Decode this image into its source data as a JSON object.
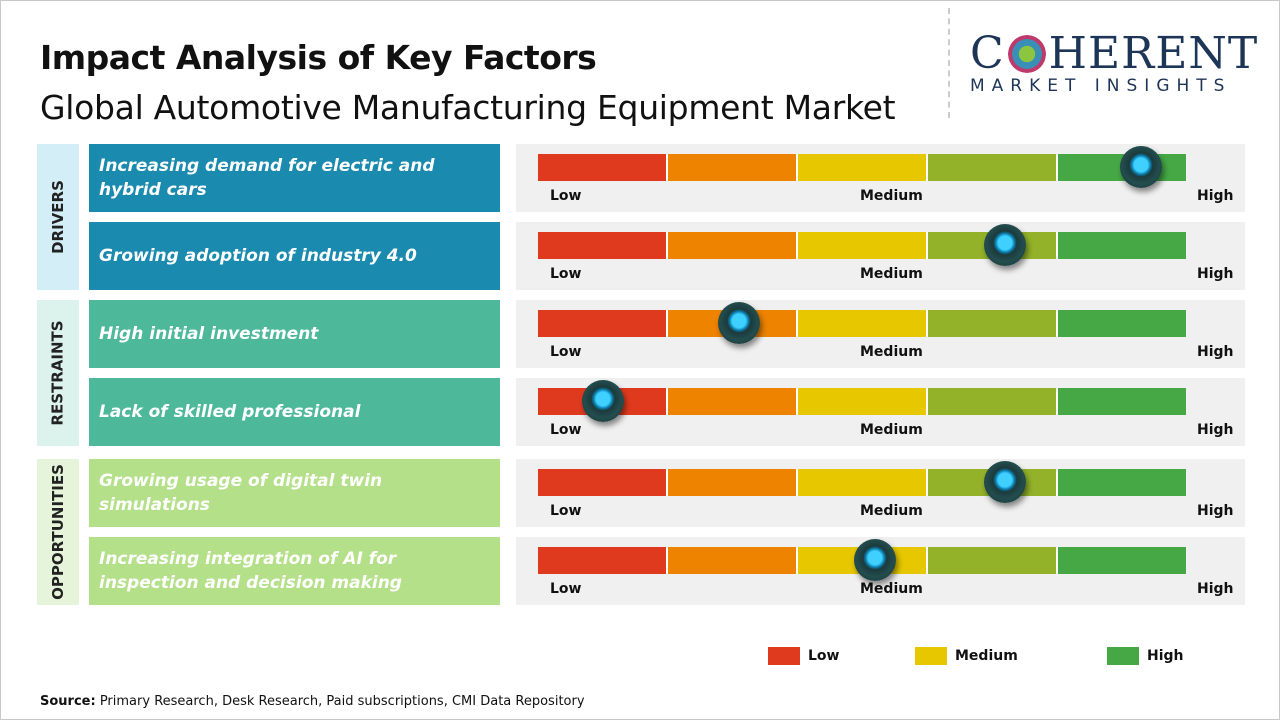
{
  "header": {
    "title": "Impact Analysis of Key Factors",
    "subtitle": "Global Automotive Manufacturing Equipment Market"
  },
  "logo": {
    "text_before": "C",
    "text_after": "HERENT",
    "tagline": "MARKET INSIGHTS"
  },
  "colors": {
    "low": "#e03a1e",
    "low_mid": "#ee8300",
    "medium": "#e6c700",
    "mid_high": "#93b22a",
    "high": "#45a845",
    "drivers": "#1a8aae",
    "restraints": "#4db89a",
    "opportunities": "#b5e08a",
    "knob": "#1fb8f0"
  },
  "chart_data": {
    "type": "gauge",
    "scale_labels": [
      "Low",
      "Medium",
      "High"
    ],
    "categories": [
      {
        "name": "DRIVERS",
        "factors": [
          {
            "label": "Increasing demand for electric and hybrid cars",
            "impact": 0.93
          },
          {
            "label": "Growing adoption of industry 4.0",
            "impact": 0.72
          }
        ]
      },
      {
        "name": "RESTRAINTS",
        "factors": [
          {
            "label": "High initial investment",
            "impact": 0.31
          },
          {
            "label": "Lack of skilled professional",
            "impact": 0.1
          }
        ]
      },
      {
        "name": "OPPORTUNITIES",
        "factors": [
          {
            "label": "Growing usage of digital twin simulations",
            "impact": 0.72
          },
          {
            "label": "Increasing integration of AI for inspection and decision making",
            "impact": 0.52
          }
        ]
      }
    ],
    "legend": [
      {
        "label": "Low",
        "color": "#e03a1e"
      },
      {
        "label": "Medium",
        "color": "#e6c700"
      },
      {
        "label": "High",
        "color": "#45a845"
      }
    ]
  },
  "source": {
    "label": "Source:",
    "text": " Primary Research, Desk Research, Paid subscriptions, CMI Data Repository"
  }
}
